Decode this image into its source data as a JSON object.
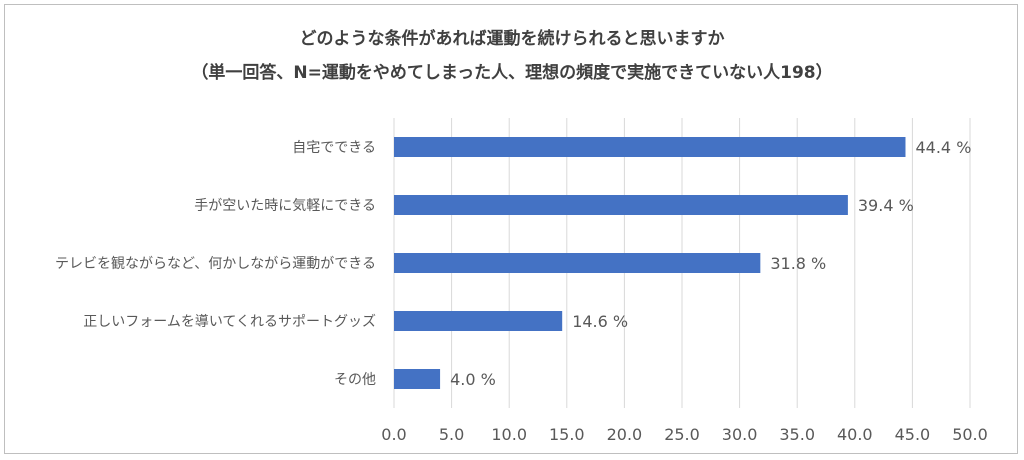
{
  "chart_data": {
    "type": "bar",
    "orientation": "horizontal",
    "title": "どのような条件があれば運動を続けられると思いますか",
    "subtitle": "（単一回答、N=運動をやめてしまった人、理想の頻度で実施できていない人198）",
    "categories": [
      "自宅でできる",
      "手が空いた時に気軽にできる",
      "テレビを観ながらなど、何かしながら運動ができる",
      "正しいフォームを導いてくれるサポートグッズ",
      "その他"
    ],
    "values": [
      44.4,
      39.4,
      31.8,
      14.6,
      4.0
    ],
    "value_labels": [
      "44.4 %",
      "39.4 %",
      "31.8 %",
      "14.6 %",
      "4.0 %"
    ],
    "xlim": [
      0,
      50
    ],
    "xticks": [
      "0.0",
      "5.0",
      "10.0",
      "15.0",
      "20.0",
      "25.0",
      "30.0",
      "35.0",
      "40.0",
      "45.0",
      "50.0"
    ],
    "grid": true,
    "bar_color": "#4472c4",
    "gridline_color": "#d9d9d9",
    "text_color": "#595959",
    "title_color": "#404040"
  }
}
